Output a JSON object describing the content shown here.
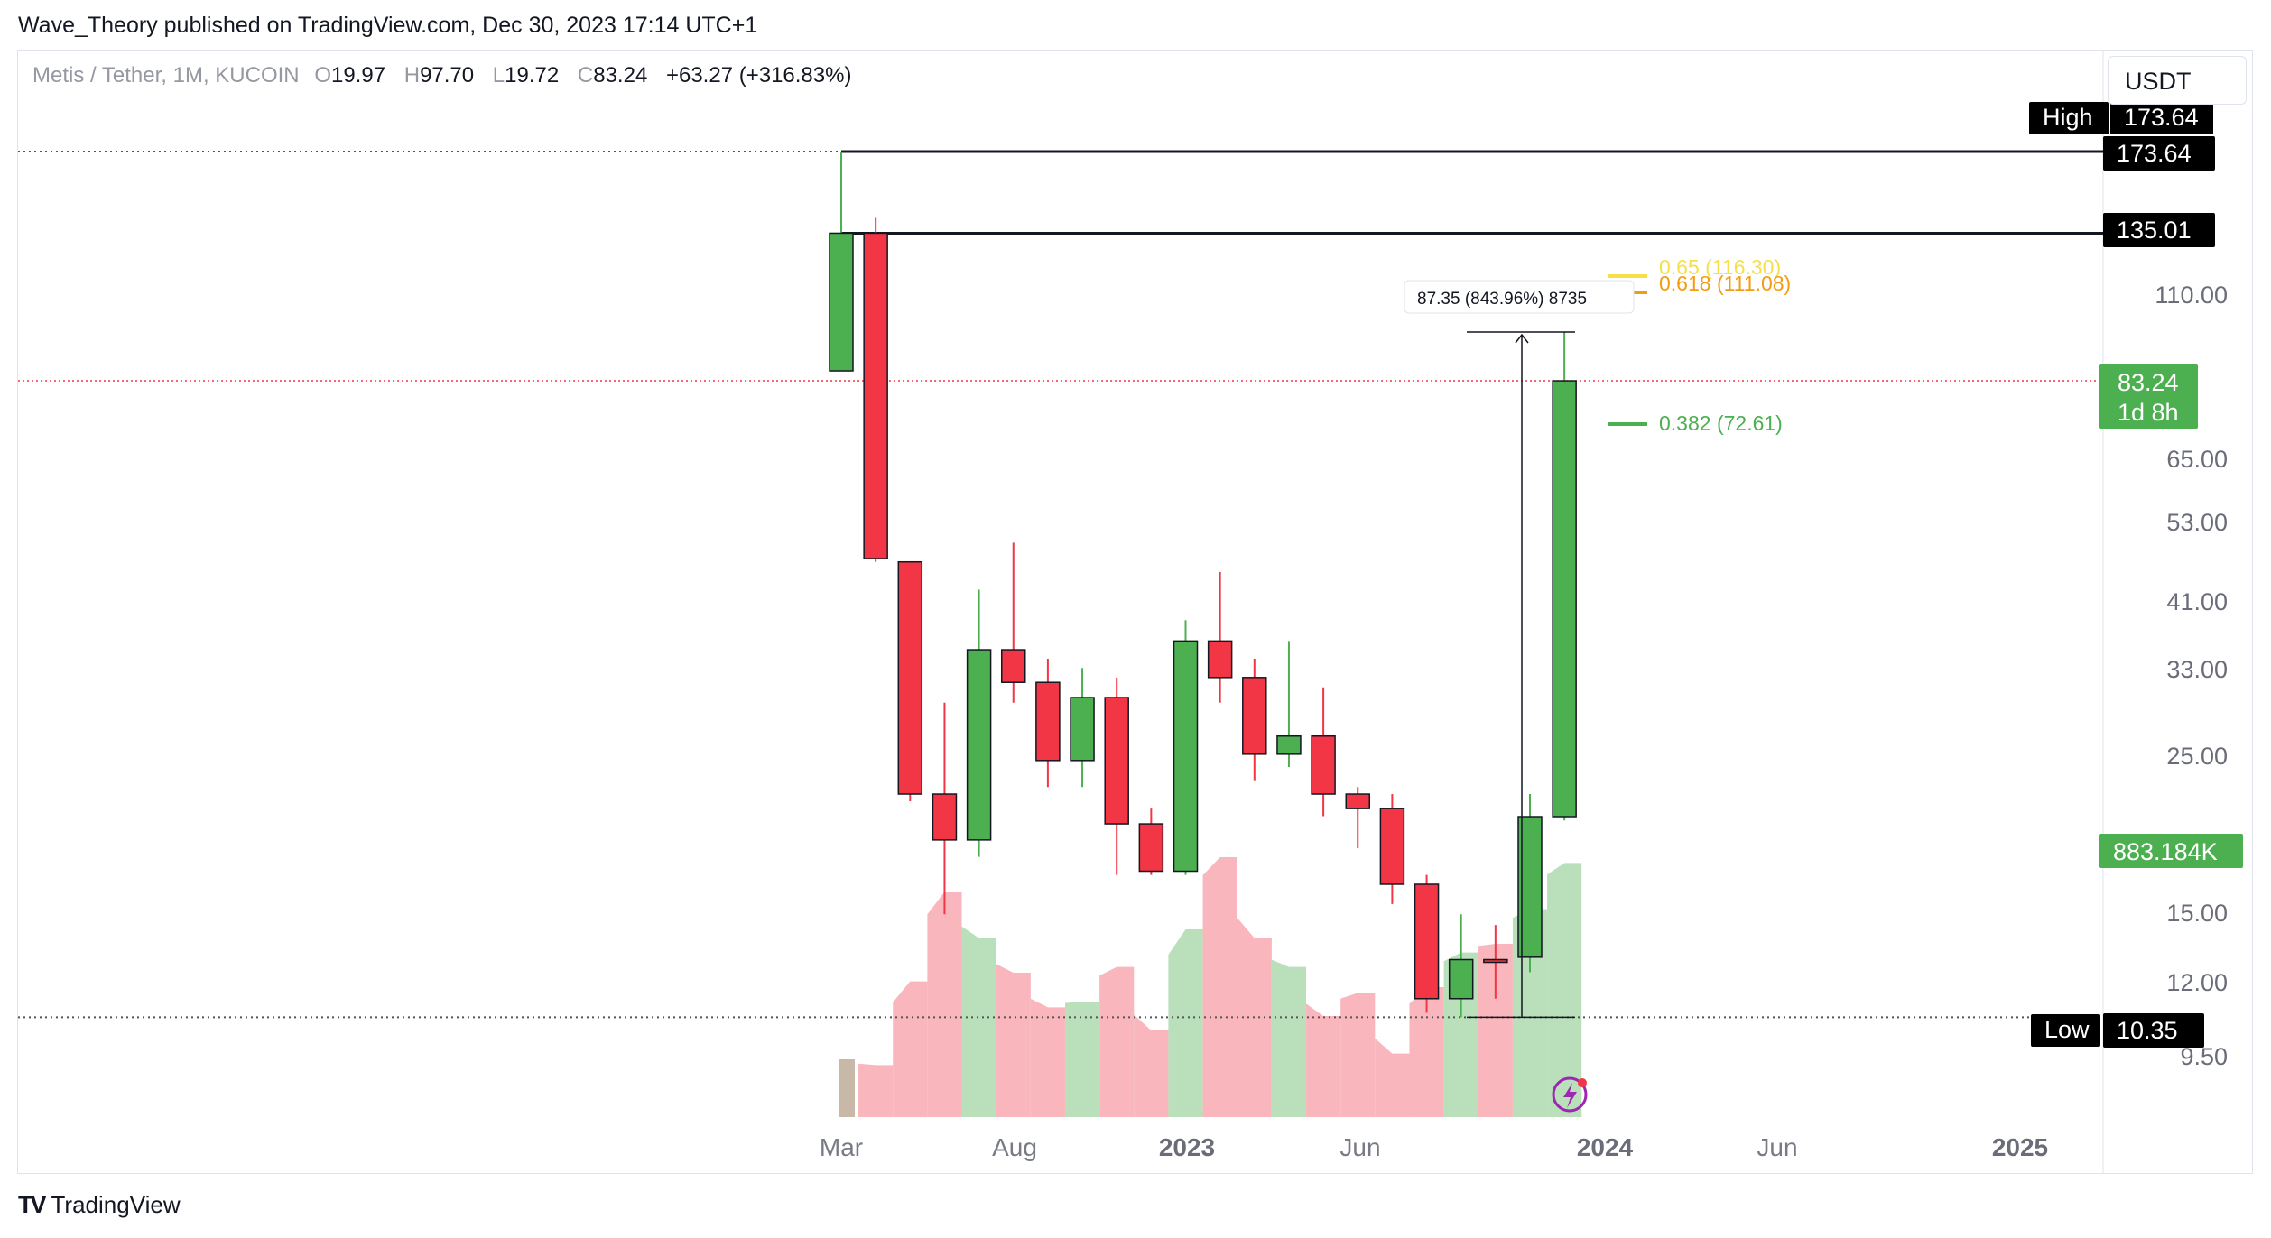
{
  "header": {
    "published": "Wave_Theory published on TradingView.com, Dec 30, 2023 17:14 UTC+1"
  },
  "legend": {
    "symbol": "Metis / Tether, 1M, KUCOIN",
    "o_key": "O",
    "o": "19.97",
    "h_key": "H",
    "h": "97.70",
    "l_key": "L",
    "l": "19.72",
    "c_key": "C",
    "c": "83.24",
    "change": "+63.27 (+316.83%)"
  },
  "currency": "USDT",
  "footer": {
    "logo": "TV",
    "brand": "TradingView"
  },
  "colors": {
    "up": "#4caf50",
    "down": "#f23645",
    "vol_up": "#b9dfbb",
    "vol_down": "#f9b6bc",
    "fib_382": "#4caf50",
    "fib_618": "#f39c12",
    "fib_65": "#f5e04a",
    "last_price": "#f23645"
  },
  "chart_data": {
    "type": "candlestick",
    "price_scale": "log",
    "yaxis_ticks": [
      "9.50",
      "12.00",
      "15.00",
      "25.00",
      "33.00",
      "41.00",
      "53.00",
      "65.00",
      "110.00"
    ],
    "xaxis_ticks": [
      "Mar",
      "Aug",
      "2023",
      "Jun",
      "2024",
      "Jun",
      "2025"
    ],
    "candles": [
      {
        "month": "2022-03",
        "o": 86,
        "h": 173.64,
        "l": 86,
        "c": 135.01
      },
      {
        "month": "2022-04",
        "o": 135.01,
        "h": 142,
        "l": 46,
        "c": 46.5
      },
      {
        "month": "2022-05",
        "o": 46,
        "h": 46,
        "l": 21,
        "c": 21.5
      },
      {
        "month": "2022-06",
        "o": 21.5,
        "h": 29,
        "l": 14.5,
        "c": 18.5
      },
      {
        "month": "2022-07",
        "o": 18.5,
        "h": 42,
        "l": 17.5,
        "c": 34.5
      },
      {
        "month": "2022-08",
        "o": 34.5,
        "h": 49,
        "l": 29,
        "c": 31
      },
      {
        "month": "2022-09",
        "o": 31,
        "h": 33.5,
        "l": 22,
        "c": 24
      },
      {
        "month": "2022-10",
        "o": 24,
        "h": 32.5,
        "l": 22,
        "c": 29.5
      },
      {
        "month": "2022-11",
        "o": 29.5,
        "h": 31.5,
        "l": 16.5,
        "c": 19.5
      },
      {
        "month": "2022-12",
        "o": 19.5,
        "h": 20.5,
        "l": 16.5,
        "c": 16.7
      },
      {
        "month": "2023-01",
        "o": 16.7,
        "h": 38,
        "l": 16.5,
        "c": 35.5
      },
      {
        "month": "2023-02",
        "o": 35.5,
        "h": 44.5,
        "l": 29,
        "c": 31.5
      },
      {
        "month": "2023-03",
        "o": 31.5,
        "h": 33.5,
        "l": 22.5,
        "c": 24.5
      },
      {
        "month": "2023-04",
        "o": 24.5,
        "h": 35.5,
        "l": 23.5,
        "c": 26
      },
      {
        "month": "2023-05",
        "o": 26,
        "h": 30.5,
        "l": 20,
        "c": 21.5
      },
      {
        "month": "2023-06",
        "o": 21.5,
        "h": 22,
        "l": 18,
        "c": 20.5
      },
      {
        "month": "2023-07",
        "o": 20.5,
        "h": 21.5,
        "l": 15,
        "c": 16
      },
      {
        "month": "2023-08",
        "o": 16,
        "h": 16.5,
        "l": 10.5,
        "c": 11
      },
      {
        "month": "2023-09",
        "o": 11,
        "h": 14.5,
        "l": 10.35,
        "c": 12.5
      },
      {
        "month": "2023-10",
        "o": 12.5,
        "h": 14,
        "l": 11,
        "c": 12.4
      },
      {
        "month": "2023-11",
        "o": 12.6,
        "h": 21.5,
        "l": 12,
        "c": 19.97
      },
      {
        "month": "2023-12",
        "o": 19.97,
        "h": 97.7,
        "l": 19.72,
        "c": 83.24
      }
    ],
    "volume": [
      0.2,
      0.18,
      0.47,
      0.78,
      0.62,
      0.5,
      0.38,
      0.4,
      0.52,
      0.3,
      0.65,
      0.9,
      0.62,
      0.52,
      0.35,
      0.43,
      0.22,
      0.45,
      0.57,
      0.6,
      0.72,
      0.88
    ],
    "horizontal_levels": [
      {
        "label": "High",
        "value": 173.64,
        "badge": "173.64",
        "style": "dotted"
      },
      {
        "value": 173.64,
        "badge": "173.64",
        "style": "solid"
      },
      {
        "value": 135.01,
        "badge": "135.01",
        "style": "solid"
      },
      {
        "label": "Low",
        "value": 10.35,
        "badge": "10.35",
        "style": "dotted"
      }
    ],
    "fib_levels": [
      {
        "label": "0.65 (116.30)",
        "value": 116.3
      },
      {
        "label": "0.618 (111.08)",
        "value": 111.08
      },
      {
        "label": "0.382 (72.61)",
        "value": 72.61
      }
    ],
    "measure": {
      "label": "87.35 (843.96%) 8735",
      "from": 10.35,
      "to": 97.7
    },
    "last_price": {
      "value": "83.24",
      "countdown": "1d 8h"
    },
    "last_volume": "883.184K",
    "hidden_ticks": [
      "18.00",
      "140.00"
    ]
  }
}
